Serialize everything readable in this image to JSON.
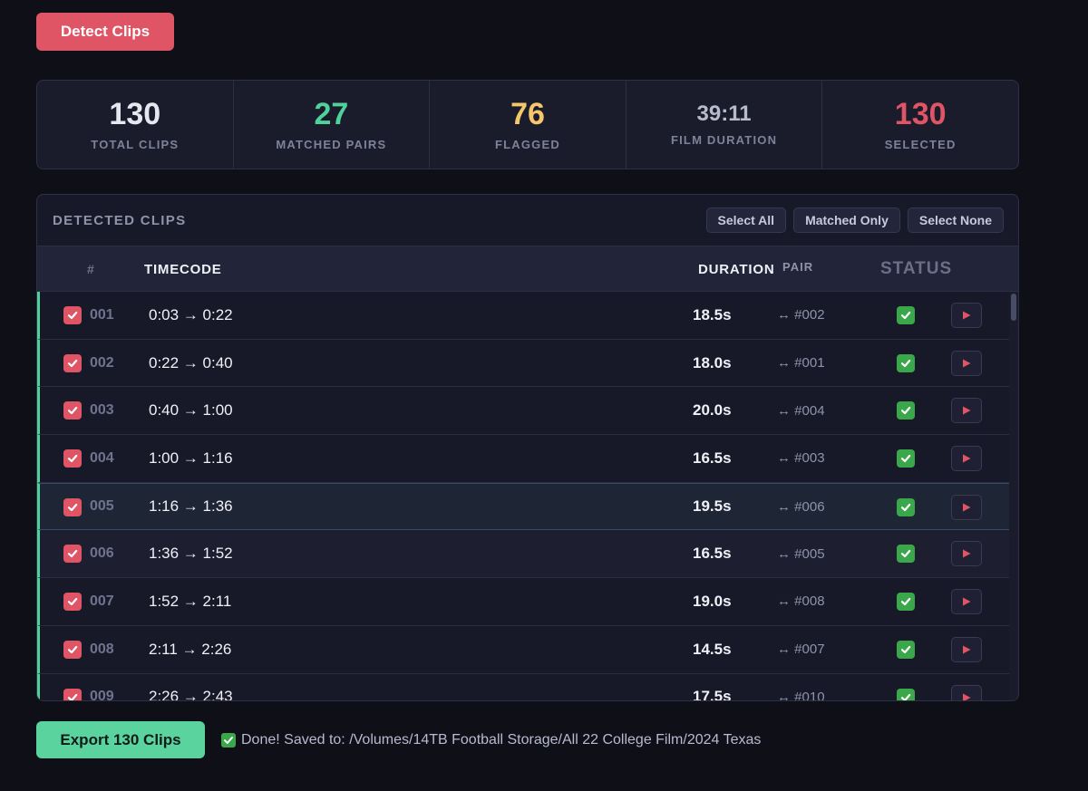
{
  "toolbar": {
    "detect_label": "Detect Clips"
  },
  "stats": [
    {
      "value": "130",
      "label": "TOTAL CLIPS",
      "color": "#e6e8f0"
    },
    {
      "value": "27",
      "label": "MATCHED PAIRS",
      "color": "#4ed19a"
    },
    {
      "value": "76",
      "label": "FLAGGED",
      "color": "#f5c66b"
    },
    {
      "value": "39:11",
      "label": "FILM DURATION",
      "color": "#b8bbcc"
    },
    {
      "value": "130",
      "label": "SELECTED",
      "color": "#e05566"
    }
  ],
  "clips_panel": {
    "title": "DETECTED CLIPS",
    "buttons": {
      "select_all": "Select All",
      "matched_only": "Matched Only",
      "select_none": "Select None"
    },
    "columns": {
      "num": "#",
      "timecode": "TIMECODE",
      "duration": "DURATION",
      "pair": "PAIR",
      "status": "STATUS"
    },
    "rows": [
      {
        "num": "001",
        "timecode": "0:03 → 0:22",
        "duration": "18.5s",
        "pair": "↔ #002"
      },
      {
        "num": "002",
        "timecode": "0:22 → 0:40",
        "duration": "18.0s",
        "pair": "↔ #001"
      },
      {
        "num": "003",
        "timecode": "0:40 → 1:00",
        "duration": "20.0s",
        "pair": "↔ #004"
      },
      {
        "num": "004",
        "timecode": "1:00 → 1:16",
        "duration": "16.5s",
        "pair": "↔ #003"
      },
      {
        "num": "005",
        "timecode": "1:16 → 1:36",
        "duration": "19.5s",
        "pair": "↔ #006"
      },
      {
        "num": "006",
        "timecode": "1:36 → 1:52",
        "duration": "16.5s",
        "pair": "↔ #005"
      },
      {
        "num": "007",
        "timecode": "1:52 → 2:11",
        "duration": "19.0s",
        "pair": "↔ #008"
      },
      {
        "num": "008",
        "timecode": "2:11 → 2:26",
        "duration": "14.5s",
        "pair": "↔ #007"
      },
      {
        "num": "009",
        "timecode": "2:26 → 2:43",
        "duration": "17.5s",
        "pair": "↔ #010"
      }
    ]
  },
  "footer": {
    "export_label": "Export 130 Clips",
    "status_message": "Done! Saved to: /Volumes/14TB Football Storage/All 22 College Film/2024 Texas"
  },
  "colors": {
    "accent_red": "#e05566",
    "accent_green": "#4ed19a",
    "accent_yellow": "#f5c66b",
    "background": "#0f0f18"
  }
}
